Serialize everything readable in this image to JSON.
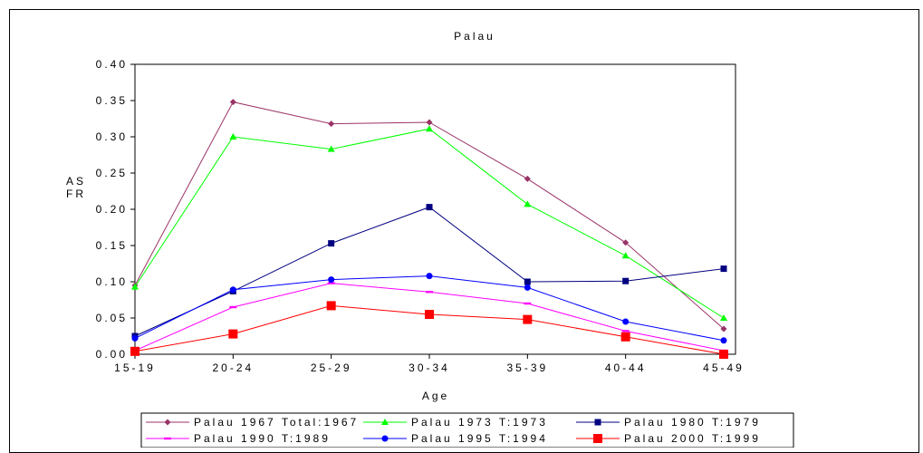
{
  "chart_data": {
    "type": "line",
    "title": "Palau",
    "xlabel": "Age",
    "ylabel_line1": "AS",
    "ylabel_line2": "FR",
    "categories": [
      "15-19",
      "20-24",
      "25-29",
      "30-34",
      "35-39",
      "40-44",
      "45-49"
    ],
    "ylim": [
      0,
      0.4
    ],
    "yticks": [
      "0.00",
      "0.05",
      "0.10",
      "0.15",
      "0.20",
      "0.25",
      "0.30",
      "0.35",
      "0.40"
    ],
    "legend_position": "bottom",
    "series": [
      {
        "name": "Palau 1967 Total:1967",
        "color": "#993366",
        "marker": "diamond",
        "values": [
          0.095,
          0.348,
          0.318,
          0.32,
          0.242,
          0.154,
          0.035
        ]
      },
      {
        "name": "Palau 1973 T:1973",
        "color": "#00ff00",
        "marker": "triangle",
        "values": [
          0.093,
          0.3,
          0.283,
          0.311,
          0.207,
          0.136,
          0.05
        ]
      },
      {
        "name": "Palau 1980 T:1979",
        "color": "#000080",
        "marker": "square",
        "values": [
          0.025,
          0.087,
          0.153,
          0.203,
          0.1,
          0.101,
          0.118
        ]
      },
      {
        "name": "Palau 1990 T:1989",
        "color": "#ff00ff",
        "marker": "dash",
        "values": [
          0.005,
          0.065,
          0.098,
          0.086,
          0.07,
          0.032,
          0.005
        ]
      },
      {
        "name": "Palau 1995 T:1994",
        "color": "#0000ff",
        "marker": "circle",
        "values": [
          0.022,
          0.089,
          0.103,
          0.108,
          0.092,
          0.045,
          0.019
        ]
      },
      {
        "name": "Palau 2000 T:1999",
        "color": "#ff0000",
        "marker": "bigsquare",
        "values": [
          0.004,
          0.028,
          0.067,
          0.055,
          0.048,
          0.024,
          0.0
        ]
      }
    ]
  }
}
